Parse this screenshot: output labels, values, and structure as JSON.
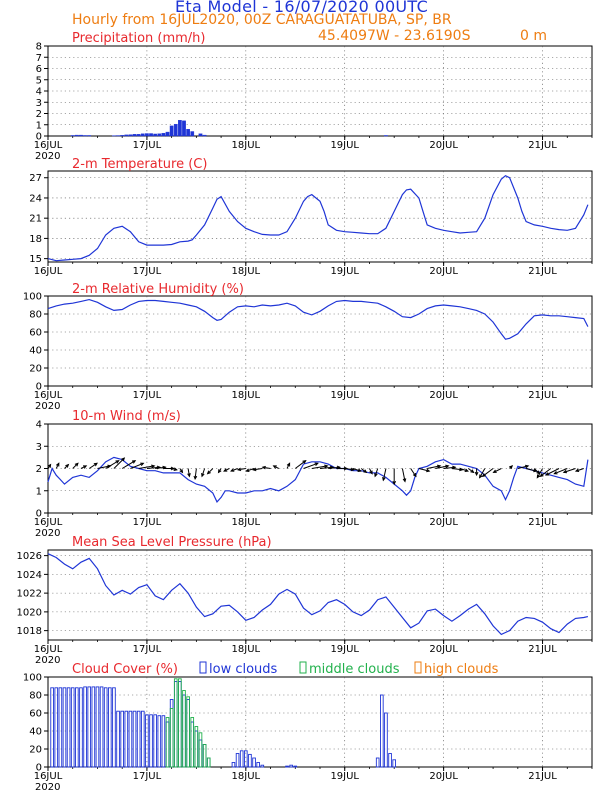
{
  "header": {
    "title": "Eta Model - 16/07/2020 00UTC",
    "subtitle": "Hourly from 16JUL2020, 00Z  CARAGUATATUBA, SP, BR",
    "coords": "45.4097W - 23.6190S",
    "elevation": "0  m"
  },
  "colors": {
    "series": "#1f35d6",
    "title": "#e8292e",
    "orange": "#ee7d12",
    "green": "#22b14c",
    "vector": "#000000"
  },
  "x_axis": {
    "ticks": [
      {
        "v": 0,
        "label": "16JUL"
      },
      {
        "v": 24,
        "label": "17JUL"
      },
      {
        "v": 48,
        "label": "18JUL"
      },
      {
        "v": 72,
        "label": "19JUL"
      },
      {
        "v": 96,
        "label": "20JUL"
      },
      {
        "v": 120,
        "label": "21JUL"
      }
    ],
    "year": "2020",
    "range": [
      0,
      132
    ]
  },
  "chart_data": [
    {
      "id": "precip",
      "type": "bar",
      "title": "Precipitation (mm/h)",
      "ylim": [
        0,
        8
      ],
      "yticks": [
        0,
        1,
        2,
        3,
        4,
        5,
        6,
        7,
        8
      ],
      "bar_width": 0.8,
      "x": [
        6,
        7,
        8,
        9,
        10,
        16,
        17,
        18,
        19,
        20,
        21,
        22,
        23,
        24,
        25,
        26,
        27,
        28,
        29,
        30,
        31,
        32,
        33,
        34,
        35,
        37,
        38,
        82
      ],
      "values": [
        0.05,
        0.08,
        0.08,
        0.05,
        0.05,
        0.03,
        0.04,
        0.06,
        0.1,
        0.12,
        0.15,
        0.15,
        0.2,
        0.22,
        0.22,
        0.18,
        0.2,
        0.25,
        0.35,
        0.9,
        1.05,
        1.4,
        1.35,
        0.6,
        0.4,
        0.2,
        0.08,
        0.05
      ]
    },
    {
      "id": "temp",
      "type": "line",
      "title": "2-m Temperature (C)",
      "ylim": [
        14.5,
        28
      ],
      "yticks": [
        15,
        18,
        21,
        24,
        27
      ],
      "x": [
        0,
        2,
        4,
        6,
        8,
        10,
        12,
        14,
        16,
        18,
        20,
        22,
        24,
        26,
        28,
        30,
        32,
        34,
        35,
        36,
        38,
        40,
        41,
        42,
        44,
        46,
        48,
        50,
        52,
        54,
        56,
        58,
        60,
        62,
        63,
        64,
        66,
        67,
        68,
        70,
        72,
        74,
        76,
        78,
        80,
        82,
        84,
        86,
        87,
        88,
        90,
        91,
        92,
        94,
        96,
        98,
        100,
        102,
        104,
        106,
        108,
        110,
        111,
        112,
        114,
        115,
        116,
        118,
        120,
        122,
        124,
        126,
        128,
        130,
        131
      ],
      "values": [
        15.0,
        14.7,
        14.8,
        14.9,
        15.0,
        15.5,
        16.5,
        18.5,
        19.5,
        19.8,
        19.0,
        17.5,
        17.0,
        17.0,
        17.0,
        17.1,
        17.5,
        17.6,
        17.8,
        18.5,
        20.0,
        22.5,
        23.8,
        24.2,
        22.0,
        20.5,
        19.5,
        19.0,
        18.6,
        18.5,
        18.5,
        19.0,
        21.0,
        23.5,
        24.2,
        24.5,
        23.5,
        22.0,
        20.0,
        19.2,
        19.0,
        18.9,
        18.8,
        18.7,
        18.7,
        19.5,
        22.0,
        24.5,
        25.2,
        25.3,
        24.0,
        22.0,
        20.0,
        19.5,
        19.2,
        19.0,
        18.8,
        18.9,
        19.0,
        21.0,
        24.5,
        26.8,
        27.3,
        27.0,
        24.0,
        22.0,
        20.5,
        20.0,
        19.8,
        19.5,
        19.3,
        19.2,
        19.5,
        21.5,
        23.0
      ]
    },
    {
      "id": "rh",
      "type": "line",
      "title": "2-m Relative Humidity (%)",
      "ylim": [
        0,
        100
      ],
      "yticks": [
        0,
        20,
        40,
        60,
        80,
        100
      ],
      "x": [
        0,
        2,
        4,
        6,
        8,
        10,
        12,
        14,
        16,
        18,
        20,
        22,
        24,
        26,
        28,
        30,
        32,
        34,
        36,
        38,
        40,
        41,
        42,
        44,
        46,
        48,
        50,
        52,
        54,
        56,
        58,
        60,
        62,
        64,
        66,
        68,
        70,
        72,
        74,
        76,
        78,
        80,
        82,
        84,
        86,
        88,
        90,
        92,
        94,
        96,
        98,
        100,
        102,
        104,
        106,
        108,
        110,
        111,
        112,
        114,
        116,
        118,
        120,
        122,
        124,
        126,
        128,
        130,
        131
      ],
      "values": [
        86,
        89,
        91,
        92,
        94,
        96,
        93,
        88,
        84,
        85,
        90,
        94,
        95,
        95,
        94,
        93,
        92,
        90,
        88,
        83,
        76,
        73,
        74,
        82,
        88,
        89,
        88,
        90,
        89,
        90,
        92,
        89,
        82,
        79,
        83,
        89,
        94,
        95,
        94,
        94,
        93,
        92,
        88,
        83,
        77,
        76,
        80,
        86,
        89,
        90,
        89,
        88,
        86,
        84,
        80,
        71,
        58,
        52,
        53,
        58,
        69,
        78,
        79,
        78,
        78,
        77,
        76,
        75,
        66
      ]
    },
    {
      "id": "wind",
      "type": "line",
      "title": "10-m Wind (m/s)",
      "ylim": [
        0,
        4
      ],
      "yticks": [
        0,
        1,
        2,
        3,
        4
      ],
      "x": [
        0,
        1,
        2,
        3,
        4,
        6,
        8,
        10,
        12,
        14,
        16,
        18,
        20,
        22,
        24,
        26,
        28,
        30,
        32,
        34,
        36,
        38,
        40,
        41,
        42,
        43,
        44,
        46,
        48,
        50,
        52,
        54,
        56,
        58,
        60,
        62,
        64,
        66,
        68,
        70,
        72,
        74,
        76,
        78,
        80,
        82,
        84,
        86,
        87,
        88,
        89,
        90,
        92,
        94,
        96,
        98,
        100,
        102,
        104,
        106,
        108,
        110,
        111,
        112,
        113,
        114,
        116,
        118,
        120,
        122,
        124,
        126,
        128,
        130,
        131
      ],
      "values": [
        1.4,
        2.0,
        1.7,
        1.5,
        1.3,
        1.6,
        1.7,
        1.6,
        1.9,
        2.3,
        2.5,
        2.4,
        2.1,
        2.0,
        1.9,
        1.9,
        1.8,
        1.8,
        1.8,
        1.5,
        1.3,
        1.2,
        0.9,
        0.5,
        0.7,
        1.0,
        1.0,
        0.9,
        0.9,
        1.0,
        1.0,
        1.1,
        1.0,
        1.2,
        1.5,
        2.2,
        2.3,
        2.3,
        2.2,
        2.0,
        2.0,
        1.9,
        1.9,
        1.8,
        1.8,
        1.6,
        1.3,
        1.0,
        0.8,
        1.0,
        1.6,
        2.0,
        2.1,
        2.3,
        2.4,
        2.2,
        2.2,
        2.1,
        2.0,
        1.7,
        1.2,
        1.0,
        0.6,
        1.0,
        1.6,
        2.1,
        2.0,
        1.9,
        1.8,
        1.7,
        1.6,
        1.5,
        1.3,
        1.2,
        2.4
      ],
      "vectors": [
        [
          0,
          0.1,
          0.15
        ],
        [
          2,
          0.1,
          0.2
        ],
        [
          4,
          0.15,
          0.15
        ],
        [
          6,
          0.2,
          0.2
        ],
        [
          8,
          0.2,
          0.1
        ],
        [
          10,
          0.3,
          0.2
        ],
        [
          12,
          0.5,
          0.1
        ],
        [
          14,
          0.5,
          0.3
        ],
        [
          16,
          0.4,
          0.4
        ],
        [
          18,
          0.5,
          0.3
        ],
        [
          20,
          0.5,
          0.2
        ],
        [
          22,
          0.6,
          0.1
        ],
        [
          24,
          0.5,
          0.05
        ],
        [
          26,
          0.4,
          0.05
        ],
        [
          28,
          0.4,
          0.0
        ],
        [
          30,
          0.2,
          -0.05
        ],
        [
          32,
          0.1,
          -0.15
        ],
        [
          34,
          0.05,
          -0.3
        ],
        [
          36,
          -0.05,
          -0.4
        ],
        [
          38,
          -0.1,
          -0.3
        ],
        [
          40,
          -0.2,
          -0.2
        ],
        [
          42,
          -0.1,
          -0.15
        ],
        [
          44,
          -0.2,
          -0.1
        ],
        [
          46,
          -0.25,
          -0.1
        ],
        [
          48,
          -0.3,
          -0.05
        ],
        [
          50,
          -0.3,
          -0.1
        ],
        [
          52,
          -0.35,
          -0.05
        ],
        [
          54,
          -0.3,
          0.05
        ],
        [
          56,
          -0.2,
          0.1
        ],
        [
          58,
          0.1,
          0.2
        ],
        [
          60,
          0.4,
          0.3
        ],
        [
          62,
          0.55,
          0.2
        ],
        [
          64,
          0.6,
          0.1
        ],
        [
          66,
          0.5,
          0.05
        ],
        [
          68,
          0.45,
          0.05
        ],
        [
          70,
          0.4,
          0.0
        ],
        [
          72,
          0.35,
          -0.05
        ],
        [
          74,
          0.3,
          -0.1
        ],
        [
          76,
          0.2,
          -0.15
        ],
        [
          78,
          0.1,
          -0.2
        ],
        [
          80,
          -0.1,
          -0.3
        ],
        [
          82,
          -0.1,
          -0.45
        ],
        [
          84,
          0.0,
          -0.6
        ],
        [
          86,
          0.1,
          -0.5
        ],
        [
          88,
          0.2,
          -0.3
        ],
        [
          90,
          0.4,
          -0.1
        ],
        [
          92,
          0.5,
          0.1
        ],
        [
          94,
          0.5,
          0.1
        ],
        [
          96,
          0.45,
          0.05
        ],
        [
          98,
          0.4,
          -0.05
        ],
        [
          100,
          0.3,
          -0.1
        ],
        [
          102,
          0.2,
          -0.15
        ],
        [
          104,
          0.0,
          -0.25
        ],
        [
          106,
          -0.2,
          -0.35
        ],
        [
          108,
          -0.4,
          -0.3
        ],
        [
          110,
          -0.3,
          -0.15
        ],
        [
          112,
          0.1,
          0.1
        ],
        [
          114,
          0.4,
          0.1
        ],
        [
          116,
          0.4,
          -0.1
        ],
        [
          118,
          0.2,
          -0.2
        ],
        [
          120,
          -0.2,
          -0.35
        ],
        [
          122,
          -0.4,
          -0.3
        ],
        [
          124,
          -0.5,
          -0.25
        ],
        [
          126,
          -0.5,
          -0.2
        ],
        [
          128,
          -0.45,
          -0.15
        ],
        [
          130,
          -0.3,
          -0.1
        ]
      ]
    },
    {
      "id": "mslp",
      "type": "line",
      "title": "Mean Sea Level Pressure (hPa)",
      "ylim": [
        1017,
        1026.6
      ],
      "yticks": [
        1018,
        1020,
        1022,
        1024,
        1026
      ],
      "x": [
        0,
        2,
        4,
        6,
        8,
        10,
        12,
        14,
        16,
        18,
        20,
        22,
        24,
        26,
        28,
        30,
        32,
        34,
        36,
        38,
        40,
        42,
        44,
        46,
        48,
        50,
        52,
        54,
        56,
        58,
        60,
        62,
        64,
        66,
        68,
        70,
        72,
        74,
        76,
        78,
        80,
        82,
        84,
        86,
        88,
        90,
        92,
        94,
        96,
        98,
        100,
        102,
        104,
        106,
        108,
        110,
        112,
        114,
        116,
        118,
        120,
        122,
        124,
        126,
        128,
        130,
        131
      ],
      "values": [
        1026.2,
        1025.8,
        1025.1,
        1024.6,
        1025.3,
        1025.7,
        1024.6,
        1022.8,
        1021.8,
        1022.3,
        1021.9,
        1022.6,
        1022.9,
        1021.7,
        1021.3,
        1022.3,
        1023.0,
        1022.0,
        1020.5,
        1019.5,
        1019.8,
        1020.6,
        1020.7,
        1020.0,
        1019.1,
        1019.4,
        1020.2,
        1020.8,
        1021.9,
        1022.4,
        1021.9,
        1020.4,
        1019.7,
        1020.1,
        1021.0,
        1021.3,
        1020.8,
        1020.0,
        1019.6,
        1020.2,
        1021.3,
        1021.6,
        1020.5,
        1019.4,
        1018.3,
        1018.8,
        1020.1,
        1020.3,
        1019.6,
        1019.0,
        1019.6,
        1020.3,
        1020.8,
        1019.8,
        1018.5,
        1017.6,
        1018.0,
        1019.0,
        1019.4,
        1019.3,
        1018.9,
        1018.2,
        1017.8,
        1018.7,
        1019.3,
        1019.4,
        1019.5
      ]
    },
    {
      "id": "cloud",
      "type": "bar",
      "title": "Cloud Cover (%)",
      "ylim": [
        0,
        100
      ],
      "yticks": [
        0,
        20,
        40,
        60,
        80,
        100
      ],
      "bar_width": 0.9,
      "legend": [
        {
          "name": "low clouds",
          "color": "#1f35d6"
        },
        {
          "name": "middle clouds",
          "color": "#22b14c"
        },
        {
          "name": "high clouds",
          "color": "#ee7d12"
        }
      ],
      "x": [
        1,
        2,
        3,
        4,
        5,
        6,
        7,
        8,
        9,
        10,
        11,
        12,
        13,
        14,
        15,
        16,
        17,
        18,
        19,
        20,
        21,
        22,
        23,
        24,
        25,
        26,
        27,
        28,
        29,
        30,
        31,
        32,
        33,
        34,
        35,
        36,
        37,
        38,
        39,
        45,
        46,
        47,
        48,
        49,
        50,
        51,
        52,
        58,
        59,
        60,
        80,
        81,
        82,
        83,
        84
      ],
      "series": [
        {
          "name": "low clouds",
          "values": [
            88,
            88,
            88,
            88,
            88,
            88,
            88,
            88,
            89,
            89,
            89,
            89,
            89,
            88,
            88,
            88,
            62,
            62,
            62,
            62,
            62,
            62,
            62,
            58,
            58,
            58,
            57,
            57,
            50,
            75,
            95,
            95,
            80,
            75,
            50,
            40,
            30,
            25,
            10,
            5,
            15,
            18,
            18,
            14,
            10,
            5,
            2,
            1,
            2,
            1,
            10,
            80,
            60,
            15,
            8
          ]
        },
        {
          "name": "middle clouds",
          "values": [
            0,
            0,
            0,
            0,
            0,
            0,
            0,
            0,
            0,
            0,
            0,
            0,
            0,
            0,
            0,
            0,
            0,
            0,
            0,
            0,
            0,
            0,
            0,
            0,
            0,
            0,
            0,
            0,
            55,
            65,
            98,
            98,
            85,
            78,
            55,
            45,
            38,
            25,
            10,
            0,
            0,
            0,
            0,
            0,
            0,
            0,
            0,
            0,
            0,
            0,
            0,
            0,
            0,
            0,
            0
          ]
        },
        {
          "name": "high clouds",
          "values": [
            0,
            0,
            0,
            0,
            0,
            0,
            0,
            0,
            0,
            0,
            0,
            0,
            0,
            0,
            0,
            0,
            0,
            0,
            0,
            0,
            0,
            0,
            0,
            0,
            0,
            0,
            0,
            0,
            0,
            0,
            0,
            0,
            0,
            0,
            0,
            0,
            0,
            0,
            0,
            0,
            0,
            0,
            0,
            0,
            0,
            0,
            0,
            0,
            0,
            0,
            0,
            0,
            0,
            0,
            0
          ]
        }
      ]
    }
  ]
}
